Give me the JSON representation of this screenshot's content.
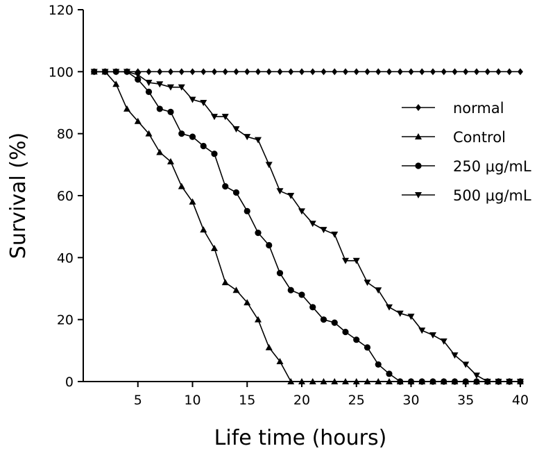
{
  "chart_data": {
    "type": "line",
    "title": "",
    "xlabel": "Life time (hours)",
    "ylabel": "Survival (%)",
    "xlim": [
      0,
      40
    ],
    "ylim": [
      0,
      120
    ],
    "xticks": [
      5,
      10,
      15,
      20,
      25,
      30,
      35,
      40
    ],
    "yticks": [
      0,
      20,
      40,
      60,
      80,
      100,
      120
    ],
    "grid": false,
    "legend_position": "right",
    "series": [
      {
        "name": "normal",
        "marker": "diamond",
        "color": "#000000",
        "x": [
          1,
          2,
          3,
          4,
          5,
          6,
          7,
          8,
          9,
          10,
          11,
          12,
          13,
          14,
          15,
          16,
          17,
          18,
          19,
          20,
          21,
          22,
          23,
          24,
          25,
          26,
          27,
          28,
          29,
          30,
          31,
          32,
          33,
          34,
          35,
          36,
          37,
          38,
          39,
          40
        ],
        "y": [
          100,
          100,
          100,
          100,
          100,
          100,
          100,
          100,
          100,
          100,
          100,
          100,
          100,
          100,
          100,
          100,
          100,
          100,
          100,
          100,
          100,
          100,
          100,
          100,
          100,
          100,
          100,
          100,
          100,
          100,
          100,
          100,
          100,
          100,
          100,
          100,
          100,
          100,
          100,
          100
        ]
      },
      {
        "name": "Control",
        "marker": "triangle-up",
        "color": "#000000",
        "x": [
          1,
          2,
          3,
          4,
          5,
          6,
          7,
          8,
          9,
          10,
          11,
          12,
          13,
          14,
          15,
          16,
          17,
          18,
          19,
          20,
          21,
          22,
          23,
          24,
          25,
          26,
          27,
          28,
          29,
          30,
          31,
          32,
          33,
          34,
          35,
          36,
          37,
          38,
          39,
          40
        ],
        "y": [
          100,
          100,
          96,
          88,
          84,
          80,
          74,
          71,
          63,
          58,
          49,
          43,
          32,
          29.5,
          25.5,
          20,
          11,
          6.5,
          0,
          0,
          0,
          0,
          0,
          0,
          0,
          0,
          0,
          0,
          0,
          0,
          0,
          0,
          0,
          0,
          0,
          0,
          0,
          0,
          0,
          0
        ]
      },
      {
        "name": "250  μg/mL",
        "marker": "circle",
        "color": "#000000",
        "x": [
          1,
          2,
          3,
          4,
          5,
          6,
          7,
          8,
          9,
          10,
          11,
          12,
          13,
          14,
          15,
          16,
          17,
          18,
          19,
          20,
          21,
          22,
          23,
          24,
          25,
          26,
          27,
          28,
          29,
          30,
          31,
          32,
          33,
          34,
          35,
          36,
          37,
          38,
          39,
          40
        ],
        "y": [
          100,
          100,
          100,
          100,
          97.5,
          93.5,
          88,
          87,
          80,
          79,
          76,
          73.5,
          63,
          61,
          55,
          48,
          44,
          35,
          29.5,
          28,
          24,
          20,
          19,
          16,
          13.5,
          11,
          5.5,
          2.5,
          0,
          0,
          0,
          0,
          0,
          0,
          0,
          0,
          0,
          0,
          0,
          0
        ]
      },
      {
        "name": "500  μg/mL",
        "marker": "triangle-down",
        "color": "#000000",
        "x": [
          1,
          2,
          3,
          4,
          5,
          6,
          7,
          8,
          9,
          10,
          11,
          12,
          13,
          14,
          15,
          16,
          17,
          18,
          19,
          20,
          21,
          22,
          23,
          24,
          25,
          26,
          27,
          28,
          29,
          30,
          31,
          32,
          33,
          34,
          35,
          36,
          37,
          38,
          39,
          40
        ],
        "y": [
          100,
          100,
          100,
          100,
          99,
          96.5,
          96,
          95,
          95,
          91,
          90,
          85.5,
          85.5,
          81.5,
          79,
          78,
          70,
          61.5,
          60,
          55,
          51,
          49,
          47.5,
          39,
          39,
          32,
          29.5,
          24,
          22,
          21,
          16.5,
          15,
          13,
          8.5,
          5.5,
          2,
          0,
          0,
          0,
          0
        ]
      }
    ]
  }
}
